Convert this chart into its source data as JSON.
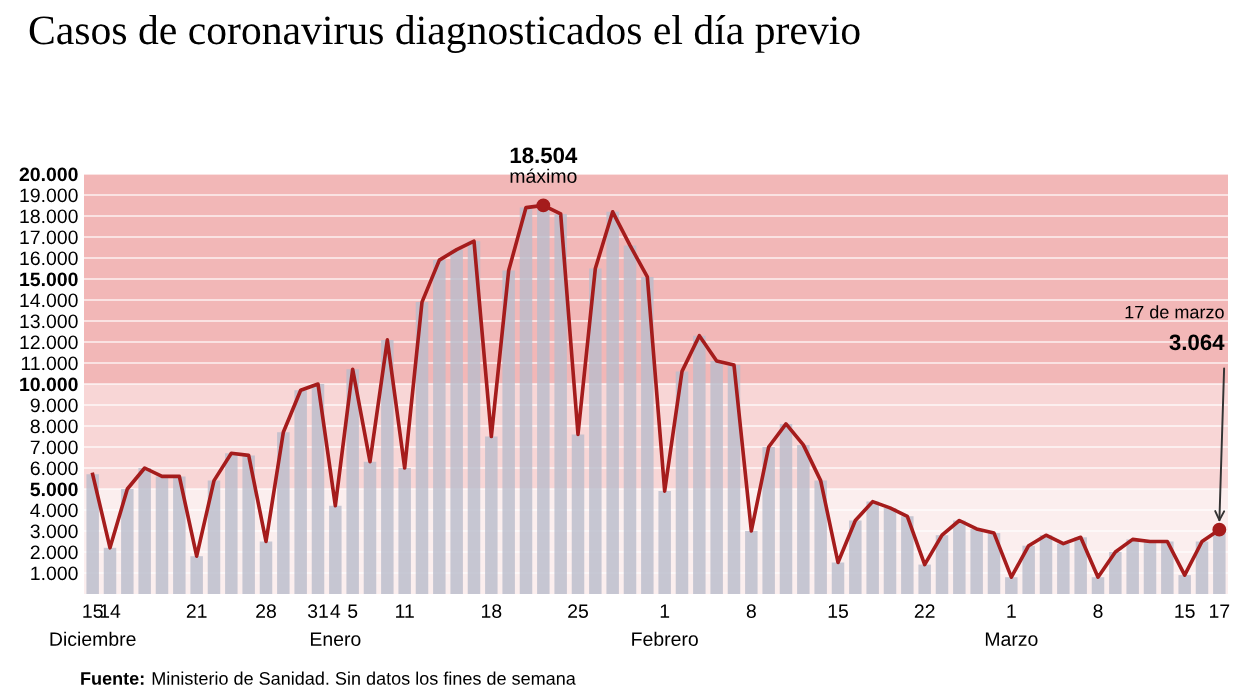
{
  "chart_data": {
    "type": "bar",
    "title": "Casos de coronavirus diagnosticados el día previo",
    "categories": [
      "15\nDiciembre",
      "14",
      null,
      null,
      null,
      null,
      "21",
      null,
      null,
      null,
      "28",
      null,
      null,
      "31",
      "4\nEnero",
      "5",
      null,
      null,
      "11",
      null,
      null,
      null,
      null,
      "18",
      null,
      null,
      null,
      null,
      "25",
      null,
      null,
      null,
      null,
      "1\nFebrero",
      null,
      null,
      null,
      null,
      "8",
      null,
      null,
      null,
      null,
      "15",
      null,
      null,
      null,
      null,
      "22",
      null,
      null,
      null,
      null,
      "1\nMarzo",
      null,
      null,
      null,
      null,
      "8",
      null,
      null,
      null,
      null,
      "15",
      null,
      "17"
    ],
    "series": [
      {
        "color": "#b9bcca",
        "values": [
          5700,
          2200,
          5000,
          6000,
          5600,
          5600,
          1800,
          5400,
          6700,
          6600,
          2500,
          7700,
          9700,
          10000,
          4200,
          10700,
          6300,
          12100,
          6000,
          13900,
          15900,
          16400,
          16800,
          7500,
          15400,
          18400,
          18504,
          18100,
          7600,
          15500,
          18200,
          16600,
          15100,
          4900,
          10600,
          12300,
          11100,
          10900,
          3000,
          7000,
          8100,
          7100,
          5400,
          1500,
          3500,
          4400,
          4100,
          3700,
          1400,
          2800,
          3500,
          3100,
          2900,
          800,
          2300,
          2800,
          2400,
          2700,
          800,
          2000,
          2600,
          2500,
          2500,
          900,
          2500,
          3064
        ]
      },
      {
        "type": "line",
        "color": "#a51c1c",
        "values": [
          5700,
          2200,
          5000,
          6000,
          5600,
          5600,
          1800,
          5400,
          6700,
          6600,
          2500,
          7700,
          9700,
          10000,
          4200,
          10700,
          6300,
          12100,
          6000,
          13900,
          15900,
          16400,
          16800,
          7500,
          15400,
          18400,
          18504,
          18100,
          7600,
          15500,
          18200,
          16600,
          15100,
          4900,
          10600,
          12300,
          11100,
          10900,
          3000,
          7000,
          8100,
          7100,
          5400,
          1500,
          3500,
          4400,
          4100,
          3700,
          1400,
          2800,
          3500,
          3100,
          2900,
          800,
          2300,
          2800,
          2400,
          2700,
          800,
          2000,
          2600,
          2500,
          2500,
          900,
          2500,
          3064
        ]
      }
    ],
    "ylim": [
      0,
      20000
    ],
    "yticks": [
      {
        "value": 1000,
        "label": "1.000"
      },
      {
        "value": 2000,
        "label": "2.000"
      },
      {
        "value": 3000,
        "label": "3.000"
      },
      {
        "value": 4000,
        "label": "4.000"
      },
      {
        "value": 5000,
        "label": "5.000"
      },
      {
        "value": 6000,
        "label": "6.000"
      },
      {
        "value": 7000,
        "label": "7.000"
      },
      {
        "value": 8000,
        "label": "8.000"
      },
      {
        "value": 9000,
        "label": "9.000"
      },
      {
        "value": 10000,
        "label": "10.000"
      },
      {
        "value": 11000,
        "label": "11.000"
      },
      {
        "value": 12000,
        "label": "12.000"
      },
      {
        "value": 13000,
        "label": "13.000"
      },
      {
        "value": 14000,
        "label": "14.000"
      },
      {
        "value": 15000,
        "label": "15.000"
      },
      {
        "value": 16000,
        "label": "16.000"
      },
      {
        "value": 17000,
        "label": "17.000"
      },
      {
        "value": 18000,
        "label": "18.000"
      },
      {
        "value": 19000,
        "label": "19.000"
      },
      {
        "value": 20000,
        "label": "20.000"
      }
    ],
    "bands": [
      {
        "axis": "y",
        "from": 0,
        "to": 5000,
        "color": "#fbeeee"
      },
      {
        "axis": "y",
        "from": 5000,
        "to": 10000,
        "color": "#f8d6d6"
      },
      {
        "axis": "y",
        "from": 10000,
        "to": 20000,
        "color": "#f2b7b7"
      }
    ],
    "grid": "y",
    "marker": "none",
    "line_style": "solid",
    "annotations": [
      {
        "text": "18.504\nmáximo",
        "y": 18504
      },
      "17 de marzo",
      {
        "text": "3.064",
        "x": "17",
        "y": 3064
      },
      "Fuente: Ministerio de Sanidad. Sin datos los fines de semana"
    ]
  }
}
